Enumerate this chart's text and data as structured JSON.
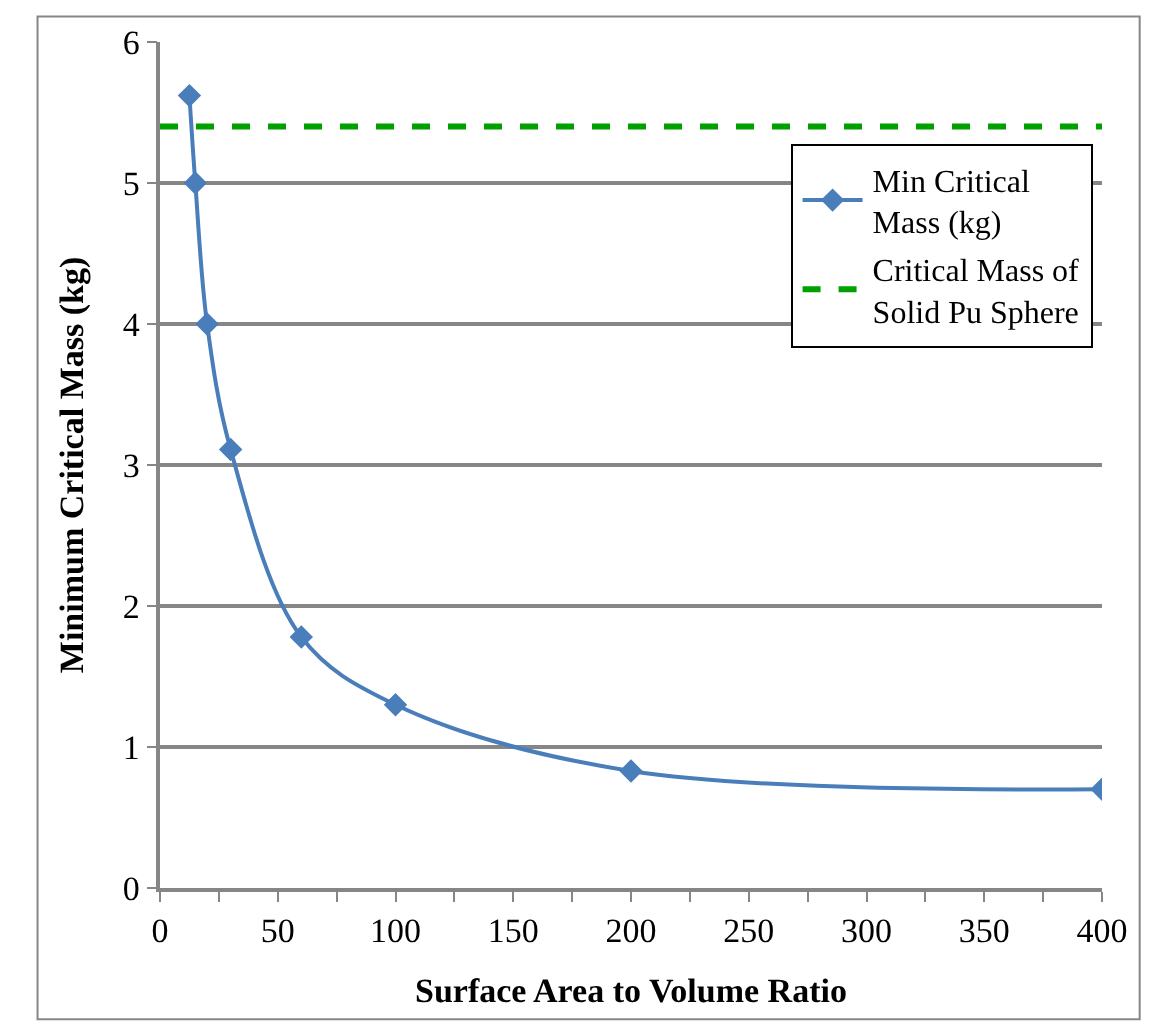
{
  "chart_data": {
    "type": "line",
    "xlabel": "Surface Area to Volume Ratio",
    "ylabel": "Minimum Critical Mass (kg)",
    "x": [
      12.5,
      15,
      20,
      30,
      60,
      100,
      200,
      400
    ],
    "series": [
      {
        "name": "Min Critical\nMass (kg)",
        "color": "#4a7ebb",
        "values": [
          5.62,
          5.0,
          4.0,
          3.11,
          1.78,
          1.3,
          0.83,
          0.7
        ]
      }
    ],
    "ref_lines": [
      {
        "axis": "y",
        "value": 5.4,
        "label": "Critical Mass of\nSolid Pu Sphere",
        "color": "#00a000",
        "line_style": "dashed"
      }
    ],
    "xlim": [
      0,
      400
    ],
    "xticks": [
      0,
      {
        "value": 25,
        "label": null
      },
      50,
      {
        "value": 75,
        "label": null
      },
      100,
      {
        "value": 125,
        "label": null
      },
      150,
      {
        "value": 175,
        "label": null
      },
      200,
      {
        "value": 225,
        "label": null
      },
      250,
      {
        "value": 275,
        "label": null
      },
      300,
      {
        "value": 325,
        "label": null
      },
      350,
      {
        "value": 375,
        "label": null
      },
      400
    ],
    "ylim": [
      0,
      6
    ],
    "yticks": [
      0,
      1,
      2,
      3,
      4,
      5,
      6
    ],
    "grid": "y",
    "legend": "top right",
    "marker": "diamond",
    "line_style": "solid"
  }
}
